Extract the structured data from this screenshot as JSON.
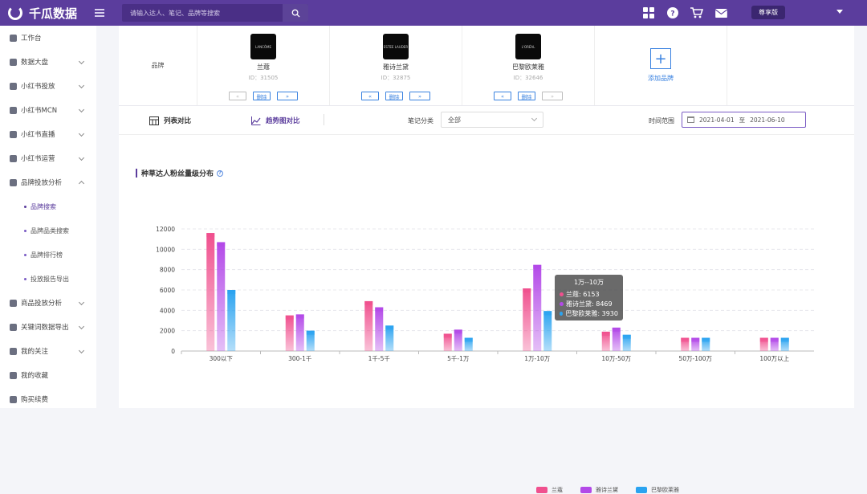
{
  "topbar": {
    "app_title": "千瓜数据",
    "search_placeholder": "请输入达人、笔记、品牌等搜索",
    "vip_label": "尊享版"
  },
  "sidebar": {
    "items": [
      {
        "label": "工作台",
        "icon": "dashboard-icon",
        "chevron": false
      },
      {
        "label": "数据大盘",
        "icon": "pie-chart-icon",
        "chevron": true
      },
      {
        "label": "小红书投放",
        "icon": "box-icon",
        "chevron": true
      },
      {
        "label": "小红书MCN",
        "icon": "bar-chart-icon",
        "chevron": true
      },
      {
        "label": "小红书直播",
        "icon": "video-icon",
        "chevron": true
      },
      {
        "label": "小红书运营",
        "icon": "chat-icon",
        "chevron": true
      },
      {
        "label": "品牌投放分析",
        "icon": "trend-icon",
        "chevron": true,
        "expanded": true
      }
    ],
    "sub_items": [
      "品牌搜索",
      "品牌品类搜索",
      "品牌排行榜",
      "投放报告导出"
    ],
    "active_sub": "品牌搜索",
    "items_after": [
      {
        "label": "商品投放分析",
        "icon": "goods-icon",
        "chevron": true
      },
      {
        "label": "关键词数据导出",
        "icon": "export-icon",
        "chevron": true
      },
      {
        "label": "我的关注",
        "icon": "eye-icon",
        "chevron": true
      },
      {
        "label": "我的收藏",
        "icon": "star-icon",
        "chevron": false
      },
      {
        "label": "购买续费",
        "icon": "cart-icon",
        "chevron": false
      }
    ]
  },
  "brand_row": {
    "label": "品牌",
    "brands": [
      {
        "name": "兰蔻",
        "id_text": "ID：31505",
        "logo_text": "LANCÔME"
      },
      {
        "name": "雅诗兰黛",
        "id_text": "ID：32875",
        "logo_text": "ESTEE LAUDER"
      },
      {
        "name": "巴黎欧莱雅",
        "id_text": "ID：32646",
        "logo_text": "L'ORÉAL"
      }
    ],
    "delete_label": "删除",
    "prev_label": "«",
    "next_label": "»",
    "add_label": "添加品牌",
    "add_symbol": "+"
  },
  "filters": {
    "tab_list": "列表对比",
    "tab_trend": "趋势图对比",
    "category_label": "笔记分类",
    "category_value": "全部",
    "time_label": "时间范围",
    "date_start": "2021-04-01",
    "date_sep": "至",
    "date_end": "2021-06-10"
  },
  "chart_section": {
    "title": "种草达人粉丝量级分布",
    "help": "?"
  },
  "chart_data": {
    "type": "bar",
    "categories": [
      "300以下",
      "300-1千",
      "1千-5千",
      "5千-1万",
      "1万-10万",
      "10万-50万",
      "50万-100万",
      "100万以上"
    ],
    "series": [
      {
        "name": "兰蔻",
        "color": "#f0508e",
        "values": [
          11600,
          3500,
          4900,
          1700,
          6153,
          1900,
          1300,
          1300
        ]
      },
      {
        "name": "雅诗兰黛",
        "color": "#b349e8",
        "values": [
          10700,
          3600,
          4300,
          2100,
          8469,
          2300,
          1300,
          1300
        ]
      },
      {
        "name": "巴黎欧莱雅",
        "color": "#2aa3f0",
        "values": [
          6000,
          2000,
          2500,
          1300,
          3930,
          1600,
          1300,
          1300
        ]
      }
    ],
    "ylim": [
      0,
      12000
    ],
    "yticks": [
      0,
      2000,
      4000,
      6000,
      8000,
      10000,
      12000
    ],
    "grid": true,
    "legend_position": "bottom"
  },
  "tooltip": {
    "title": "1万--10万",
    "rows": [
      {
        "text": "兰蔻: 6153",
        "color": "#f0508e"
      },
      {
        "text": "雅诗兰黛: 8469",
        "color": "#b349e8"
      },
      {
        "text": "巴黎欧莱雅: 3930",
        "color": "#2aa3f0"
      }
    ]
  }
}
